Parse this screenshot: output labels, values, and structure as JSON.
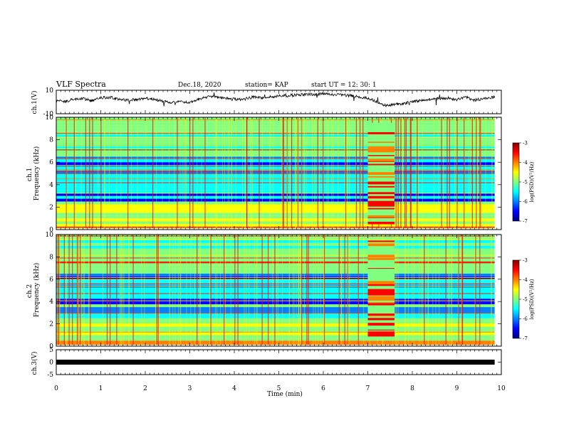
{
  "header": {
    "title": "VLF Spectra",
    "date": "Dec.18, 2020",
    "station": "station= KAP",
    "start": "start  UT =   12: 30: 1"
  },
  "chart_data": [
    {
      "type": "line",
      "panel": "waveform-ch1",
      "ylabel": "ch.1(V)",
      "ylim": [
        -10,
        10
      ],
      "y_ticks": [
        "10",
        "-10"
      ],
      "x_range": [
        0,
        10
      ],
      "data_extent_min": 9.85,
      "x": [
        0,
        0.2,
        0.4,
        0.6,
        0.8,
        1.0,
        1.2,
        1.4,
        1.6,
        1.8,
        2.0,
        2.2,
        2.4,
        2.6,
        2.8,
        3.0,
        3.2,
        3.4,
        3.6,
        3.8,
        4.0,
        4.2,
        4.4,
        4.6,
        4.8,
        5.0,
        5.2,
        5.4,
        5.6,
        5.8,
        6.0,
        6.2,
        6.4,
        6.6,
        6.8,
        7.0,
        7.2,
        7.4,
        7.6,
        7.8,
        8.0,
        8.2,
        8.4,
        8.6,
        8.8,
        9.0,
        9.2,
        9.4,
        9.6,
        9.8
      ],
      "values": [
        1.5,
        0.5,
        2.5,
        3,
        1,
        3.5,
        4,
        2.5,
        1.5,
        2,
        3,
        2.5,
        0.5,
        -0.5,
        0.5,
        -0.5,
        2.5,
        4.5,
        4,
        3.5,
        2.5,
        2,
        4,
        3.5,
        4.5,
        5,
        5.5,
        6,
        6.5,
        6.5,
        7,
        6.5,
        6,
        5.5,
        4.5,
        3,
        0.5,
        -3,
        -2,
        -1.5,
        0.5,
        1,
        2.5,
        3,
        3.5,
        2,
        4,
        1.5,
        3,
        4
      ]
    },
    {
      "type": "heatmap",
      "panel": "spectrogram-ch1",
      "ylabel": "ch.1\nFrequency (kHz)",
      "ylim": [
        0,
        10
      ],
      "y_ticks": [
        "0",
        "2",
        "4",
        "6",
        "8",
        "10"
      ],
      "x_range": [
        0,
        10
      ],
      "data_extent_min": 9.85,
      "colorbar": {
        "label": "log(PSD)(V²/Hz)",
        "range": [
          -7,
          -3
        ],
        "ticks": [
          "-3",
          "-4",
          "-5",
          "-6",
          "-7"
        ],
        "colormap": "jet"
      },
      "events": [
        {
          "start_min": 7.0,
          "end_min": 7.6,
          "description": ""
        }
      ]
    },
    {
      "type": "heatmap",
      "panel": "spectrogram-ch2",
      "ylabel": "ch.2\nFrequency (kHz)",
      "ylim": [
        0,
        10
      ],
      "y_ticks": [
        "0",
        "2",
        "4",
        "6",
        "8",
        "10"
      ],
      "x_range": [
        0,
        10
      ],
      "data_extent_min": 9.85,
      "colorbar": {
        "label": "log(PSD)(V²/Hz)",
        "range": [
          -7,
          -3
        ],
        "ticks": [
          "-3",
          "-4",
          "-5",
          "-6",
          "-7"
        ],
        "colormap": "jet"
      },
      "events": [
        {
          "start_min": 7.0,
          "end_min": 7.6,
          "description": ""
        }
      ]
    },
    {
      "type": "line",
      "panel": "waveform-ch3",
      "ylabel": "ch.3(V)",
      "ylim": [
        -5,
        5
      ],
      "y_ticks": [
        "5",
        "0",
        "-5"
      ],
      "x_range": [
        0,
        10
      ],
      "data_extent_min": 9.85,
      "x": [
        0,
        9.85
      ],
      "values": [
        0,
        0
      ]
    }
  ],
  "x_axis": {
    "label": "Time (min)",
    "ticks": [
      "0",
      "1",
      "2",
      "3",
      "4",
      "5",
      "6",
      "7",
      "8",
      "9",
      "10"
    ]
  },
  "colors": {
    "jet_stops": [
      "#00007f",
      "#0000ff",
      "#0080ff",
      "#00ffff",
      "#80ff80",
      "#ffff00",
      "#ff8000",
      "#ff0000",
      "#7f0000"
    ]
  }
}
